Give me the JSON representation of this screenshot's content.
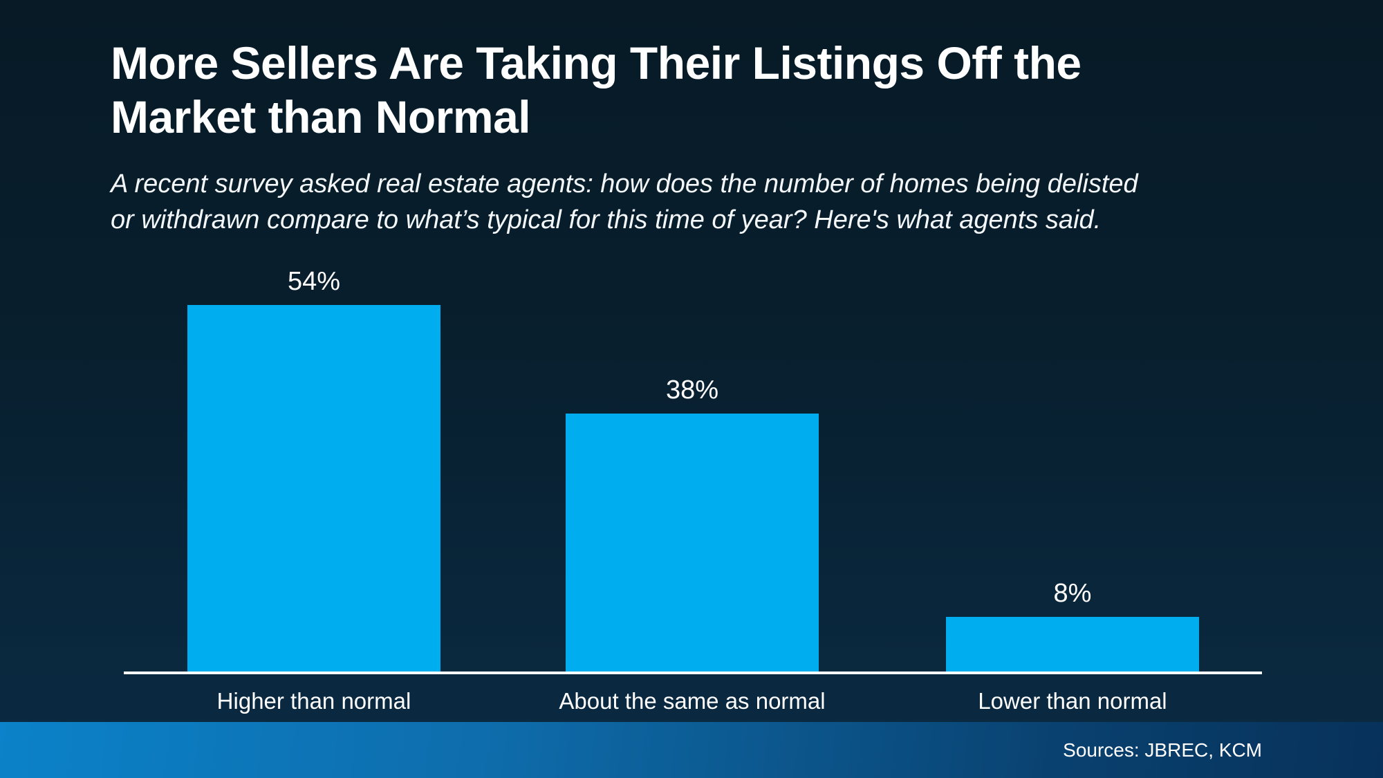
{
  "header": {
    "title_lines": [
      "More Sellers Are Taking Their Listings Off the",
      "Market than Normal"
    ],
    "subtitle_lines": [
      "A recent survey asked real estate agents: how does the number of homes being delisted",
      "or withdrawn compare to what’s typical for this time of year? Here's what agents said."
    ]
  },
  "chart_data": {
    "type": "bar",
    "title": "More Sellers Are Taking Their Listings Off the Market than Normal",
    "subtitle": "A recent survey asked real estate agents: how does the number of homes being delisted or withdrawn compare to what’s typical for this time of year? Here's what agents said.",
    "categories": [
      "Higher than normal",
      "About the same as normal",
      "Lower than normal"
    ],
    "values": [
      54,
      38,
      8
    ],
    "value_labels": [
      "54%",
      "38%",
      "8%"
    ],
    "xlabel": "",
    "ylabel": "",
    "ylim": [
      0,
      60
    ],
    "grid": false,
    "legend": false,
    "orientation": "vertical"
  },
  "colors": {
    "bar": "#00AEEF",
    "background_top": "#071A26",
    "background_bottom": "#0A2B44",
    "axis_line": "#FFFFFF",
    "text": "#FFFFFF",
    "footer_gradient_left": "#0B82C9",
    "footer_gradient_right": "#07315A"
  },
  "footer": {
    "sources": "Sources: JBREC, KCM"
  }
}
